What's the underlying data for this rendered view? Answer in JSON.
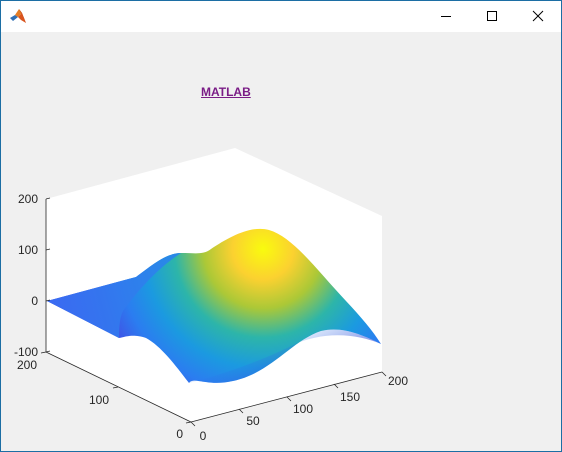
{
  "window": {
    "title": "",
    "controls": {
      "minimize": "minimize-icon",
      "maximize": "maximize-icon",
      "close": "close-icon"
    }
  },
  "figure": {
    "hyperlink_text": "MATLAB",
    "hyperlink_color": "#7a1c86",
    "background": "#f0f0f0"
  },
  "chart_data": {
    "type": "surface",
    "colormap": "parula",
    "title": "",
    "xlabel": "",
    "ylabel": "",
    "zlabel": "",
    "xlim": [
      0,
      200
    ],
    "ylim": [
      0,
      200
    ],
    "zlim": [
      -100,
      200
    ],
    "x_ticks": [
      "0",
      "50",
      "100",
      "150",
      "200"
    ],
    "y_ticks": [
      "0",
      "100",
      "200"
    ],
    "z_ticks": [
      "-100",
      "0",
      "100",
      "200"
    ],
    "grid": false,
    "box": true,
    "peak": {
      "x": 100,
      "y": 175,
      "z": 150
    },
    "trough": {
      "x": 175,
      "y": 0,
      "z": -75
    }
  }
}
